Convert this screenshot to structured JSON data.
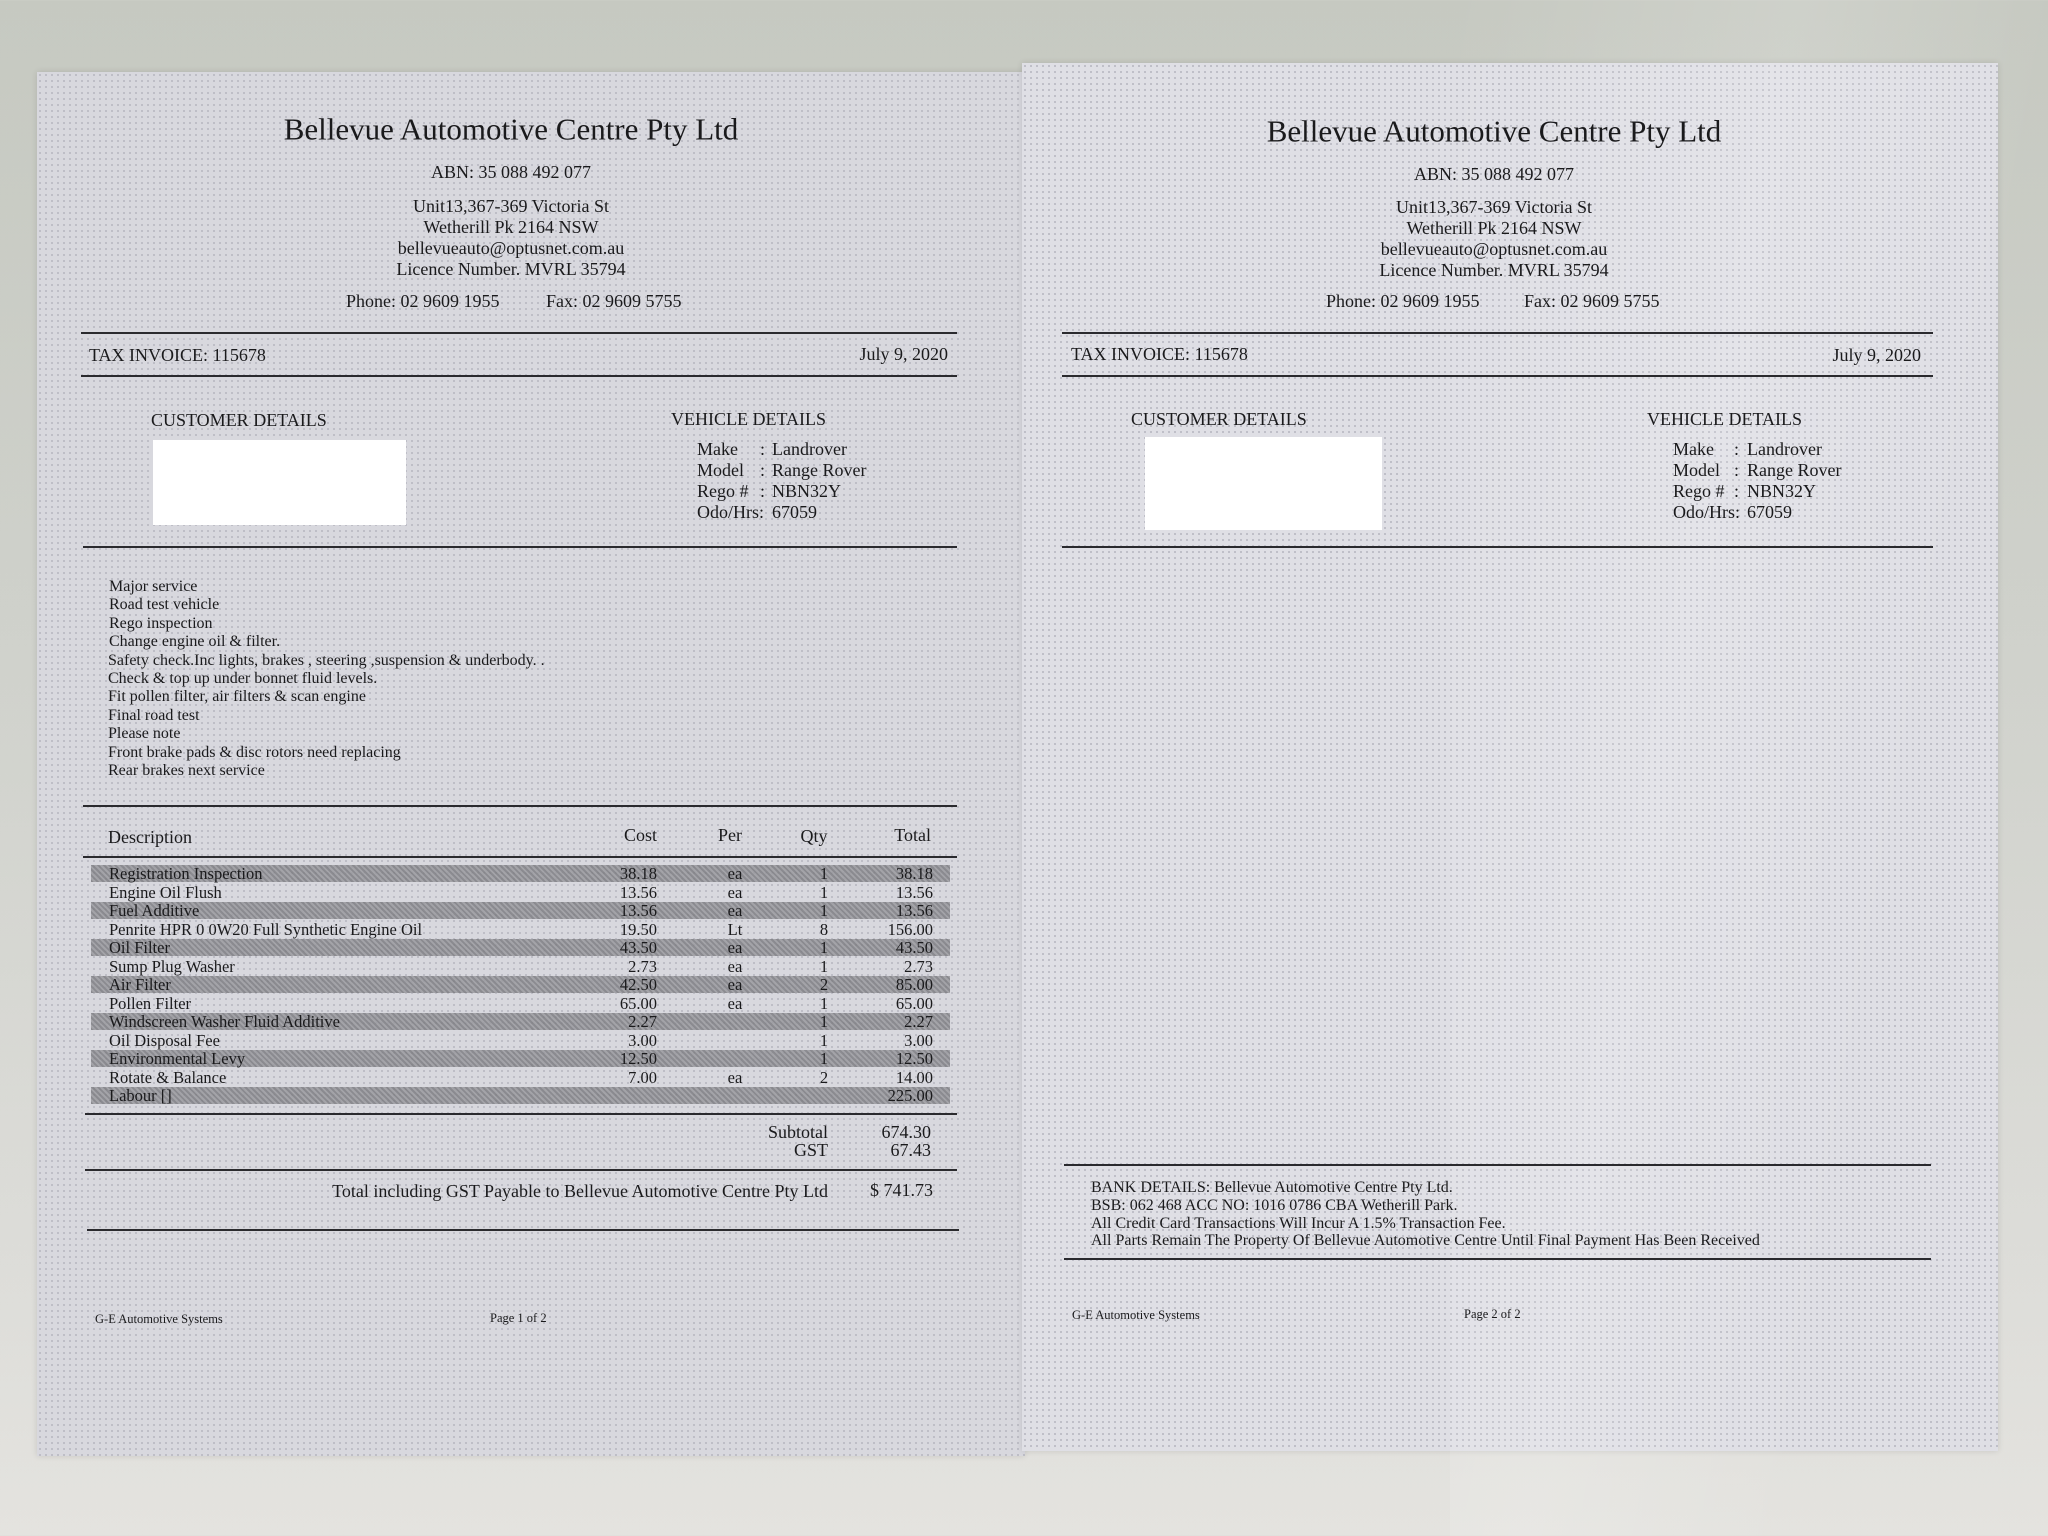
{
  "company": {
    "name": "Bellevue Automotive Centre Pty Ltd",
    "abn": "ABN: 35 088 492 077",
    "address_lines": [
      "Unit13,367-369 Victoria St",
      "Wetherill Pk 2164 NSW",
      "bellevueauto@optusnet.com.au",
      "Licence Number.  MVRL 35794"
    ],
    "phone": "Phone: 02 9609 1955",
    "fax": "Fax: 02 9609 5755"
  },
  "invoice": {
    "label": "TAX INVOICE: 115678",
    "date": "July 9, 2020"
  },
  "customer": {
    "heading": "CUSTOMER DETAILS"
  },
  "vehicle": {
    "heading": "VEHICLE DETAILS",
    "rows": [
      {
        "label": "Make",
        "sep": ":",
        "value": "Landrover"
      },
      {
        "label": "Model",
        "sep": ":",
        "value": "Range Rover"
      },
      {
        "label": "Rego #",
        "sep": ":",
        "value": "NBN32Y"
      },
      {
        "label": "Odo/Hrs:",
        "sep": "",
        "value": "67059"
      }
    ]
  },
  "work_notes": [
    "Major service",
    "Road test vehicle",
    "Rego inspection",
    "Change engine oil & filter.",
    "Safety check.Inc lights, brakes , steering ,suspension & underbody. .",
    "Check & top up under bonnet fluid levels.",
    "Fit pollen filter, air filters  & scan engine",
    "Final road test",
    "Please note",
    "Front brake pads & disc rotors need replacing",
    "Rear brakes next service"
  ],
  "table": {
    "headers": {
      "description": "Description",
      "cost": "Cost",
      "per": "Per",
      "qty": "Qty",
      "total": "Total"
    },
    "rows": [
      {
        "description": "Registration Inspection",
        "cost": "38.18",
        "per": "ea",
        "qty": "1",
        "total": "38.18"
      },
      {
        "description": "Engine Oil Flush",
        "cost": "13.56",
        "per": "ea",
        "qty": "1",
        "total": "13.56"
      },
      {
        "description": "Fuel  Additive",
        "cost": "13.56",
        "per": "ea",
        "qty": "1",
        "total": "13.56"
      },
      {
        "description": "Penrite HPR 0  0W20 Full Synthetic Engine Oil",
        "cost": "19.50",
        "per": "Lt",
        "qty": "8",
        "total": "156.00"
      },
      {
        "description": "Oil Filter",
        "cost": "43.50",
        "per": "ea",
        "qty": "1",
        "total": "43.50"
      },
      {
        "description": "Sump Plug Washer",
        "cost": "2.73",
        "per": "ea",
        "qty": "1",
        "total": "2.73"
      },
      {
        "description": "Air Filter",
        "cost": "42.50",
        "per": "ea",
        "qty": "2",
        "total": "85.00"
      },
      {
        "description": "Pollen Filter",
        "cost": "65.00",
        "per": "ea",
        "qty": "1",
        "total": "65.00"
      },
      {
        "description": "Windscreen Washer Fluid Additive",
        "cost": "2.27",
        "per": "",
        "qty": "1",
        "total": "2.27"
      },
      {
        "description": "Oil Disposal Fee",
        "cost": "3.00",
        "per": "",
        "qty": "1",
        "total": "3.00"
      },
      {
        "description": "Environmental Levy",
        "cost": "12.50",
        "per": "",
        "qty": "1",
        "total": "12.50"
      },
      {
        "description": "Rotate & Balance",
        "cost": "7.00",
        "per": "ea",
        "qty": "2",
        "total": "14.00"
      },
      {
        "description": "Labour []",
        "cost": "",
        "per": "",
        "qty": "",
        "total": "225.00"
      }
    ]
  },
  "totals": {
    "subtotal_label": "Subtotal",
    "subtotal": "674.30",
    "gst_label": "GST",
    "gst": "67.43",
    "grand_label": "Total including GST Payable to Bellevue Automotive Centre Pty Ltd",
    "grand": "$ 741.73"
  },
  "bank": [
    "BANK DETAILS: Bellevue Automotive Centre Pty Ltd.",
    "BSB: 062 468   ACC NO: 1016 0786   CBA Wetherill Park.",
    "All Credit Card Transactions Will Incur A 1.5% Transaction Fee.",
    "All Parts Remain The Property Of Bellevue Automotive Centre Until Final Payment Has Been Received"
  ],
  "footer": {
    "system": "G-E Automotive Systems",
    "page1": "Page 1 of 2",
    "page2": "Page 2 of 2"
  }
}
